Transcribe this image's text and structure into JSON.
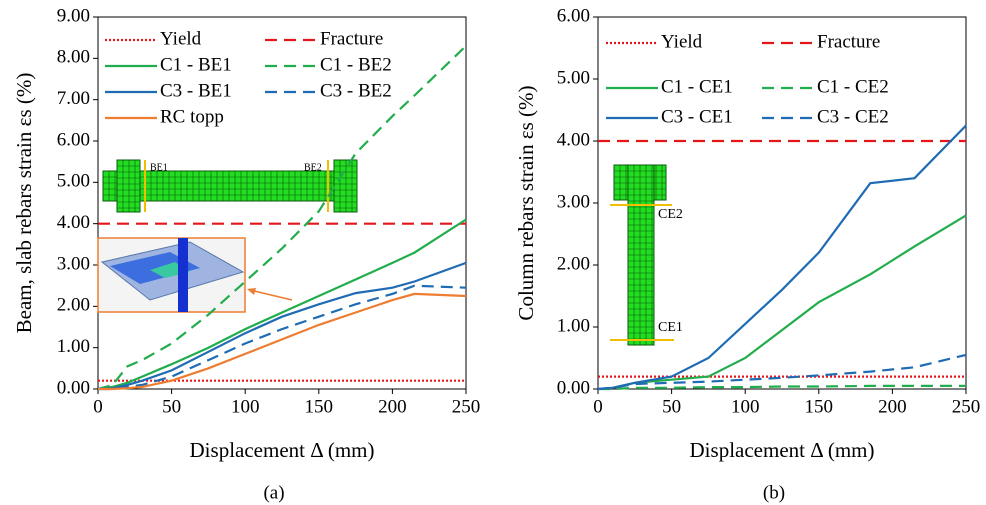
{
  "chart_data": [
    {
      "type": "line",
      "caption": "(a)",
      "x_label": "Displacement Δ (mm)",
      "y_label": "Beam, slab rebars strain εs (%)",
      "xlim": [
        0,
        250
      ],
      "xticks": [
        0,
        50,
        100,
        150,
        200,
        250
      ],
      "ylim": [
        0,
        9
      ],
      "yticks": [
        {
          "value": 0,
          "label": "0.00"
        },
        {
          "value": 1,
          "label": "1.00"
        },
        {
          "value": 2,
          "label": "2.00"
        },
        {
          "value": 3,
          "label": "3.00"
        },
        {
          "value": 4,
          "label": "4.00"
        },
        {
          "value": 5,
          "label": "5.00"
        },
        {
          "value": 6,
          "label": "6.00"
        },
        {
          "value": 7,
          "label": "7.00"
        },
        {
          "value": 8,
          "label": "8.00"
        },
        {
          "value": 9,
          "label": "9.00"
        }
      ],
      "annotations": [
        "BE1",
        "BE2"
      ],
      "x": [
        0,
        10,
        20,
        30,
        50,
        75,
        100,
        125,
        150,
        175,
        200,
        215,
        250
      ],
      "series": [
        {
          "name": "Yield",
          "color": "#e3161b",
          "style": "dotted",
          "values": [
            0.2,
            0.2,
            0.2,
            0.2,
            0.2,
            0.2,
            0.2,
            0.2,
            0.2,
            0.2,
            0.2,
            0.2,
            0.2
          ]
        },
        {
          "name": "Fracture",
          "color": "#e3161b",
          "style": "dashed",
          "values": [
            4,
            4,
            4,
            4,
            4,
            4,
            4,
            4,
            4,
            4,
            4,
            4,
            4
          ]
        },
        {
          "name": "C1 - BE1",
          "color": "#22ad4c",
          "style": "solid",
          "values": [
            0,
            0.05,
            0.15,
            0.3,
            0.6,
            1.0,
            1.45,
            1.85,
            2.25,
            2.65,
            3.05,
            3.3,
            4.1
          ]
        },
        {
          "name": "C1 - BE2",
          "color": "#22ad4c",
          "style": "dashed",
          "values": [
            0,
            0.1,
            0.55,
            0.7,
            1.1,
            1.8,
            2.6,
            3.4,
            4.3,
            5.7,
            6.6,
            7.1,
            8.3
          ]
        },
        {
          "name": "C3 - BE1",
          "color": "#1f6cb4",
          "style": "solid",
          "values": [
            0,
            0.02,
            0.1,
            0.2,
            0.45,
            0.9,
            1.35,
            1.75,
            2.05,
            2.32,
            2.45,
            2.6,
            3.05
          ]
        },
        {
          "name": "C3 - BE2",
          "color": "#1f6cb4",
          "style": "dashed",
          "values": [
            0,
            0,
            0.05,
            0.1,
            0.3,
            0.7,
            1.1,
            1.45,
            1.75,
            2.05,
            2.3,
            2.5,
            2.45
          ]
        },
        {
          "name": "RC topp",
          "color": "#ed7d31",
          "style": "solid",
          "values": [
            0,
            0,
            0.02,
            0.05,
            0.2,
            0.5,
            0.85,
            1.2,
            1.55,
            1.85,
            2.15,
            2.3,
            2.25
          ]
        }
      ]
    },
    {
      "type": "line",
      "caption": "(b)",
      "x_label": "Displacement Δ (mm)",
      "y_label": "Column rebars strain εs (%)",
      "xlim": [
        0,
        250
      ],
      "xticks": [
        0,
        50,
        100,
        150,
        200,
        250
      ],
      "ylim": [
        0,
        6
      ],
      "yticks": [
        {
          "value": 0,
          "label": "0.00"
        },
        {
          "value": 1,
          "label": "1.00"
        },
        {
          "value": 2,
          "label": "2.00"
        },
        {
          "value": 3,
          "label": "3.00"
        },
        {
          "value": 4,
          "label": "4.00"
        },
        {
          "value": 5,
          "label": "5.00"
        },
        {
          "value": 6,
          "label": "6.00"
        }
      ],
      "annotations": [
        "CE2",
        "CE1"
      ],
      "x": [
        0,
        10,
        25,
        50,
        75,
        100,
        125,
        150,
        185,
        215,
        250
      ],
      "series": [
        {
          "name": "Yield",
          "color": "#e3161b",
          "style": "dotted",
          "values": [
            0.2,
            0.2,
            0.2,
            0.2,
            0.2,
            0.2,
            0.2,
            0.2,
            0.2,
            0.2,
            0.2
          ]
        },
        {
          "name": "Fracture",
          "color": "#e3161b",
          "style": "dashed",
          "values": [
            4,
            4,
            4,
            4,
            4,
            4,
            4,
            4,
            4,
            4,
            4
          ]
        },
        {
          "name": "C1 - CE1",
          "color": "#22ad4c",
          "style": "solid",
          "values": [
            0,
            0.02,
            0.1,
            0.15,
            0.2,
            0.5,
            0.95,
            1.4,
            1.85,
            2.3,
            2.8
          ]
        },
        {
          "name": "C1 - CE2",
          "color": "#22ad4c",
          "style": "dashed",
          "values": [
            0,
            0,
            0.02,
            0.02,
            0.03,
            0.03,
            0.04,
            0.04,
            0.05,
            0.05,
            0.05
          ]
        },
        {
          "name": "C3 - CE1",
          "color": "#1f6cb4",
          "style": "solid",
          "values": [
            0,
            0.02,
            0.1,
            0.2,
            0.5,
            1.05,
            1.6,
            2.2,
            3.32,
            3.4,
            4.25
          ]
        },
        {
          "name": "C3 - CE2",
          "color": "#1f6cb4",
          "style": "dashed",
          "values": [
            0,
            0.02,
            0.08,
            0.1,
            0.12,
            0.15,
            0.18,
            0.22,
            0.28,
            0.35,
            0.55
          ]
        }
      ]
    }
  ]
}
